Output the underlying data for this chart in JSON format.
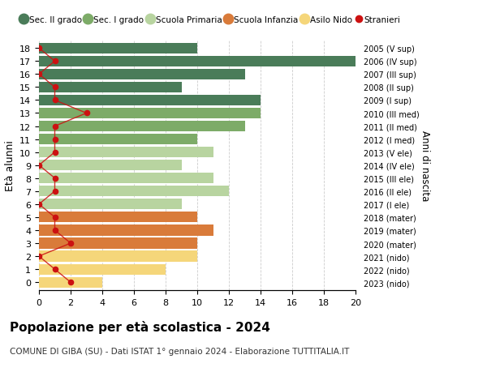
{
  "ages": [
    18,
    17,
    16,
    15,
    14,
    13,
    12,
    11,
    10,
    9,
    8,
    7,
    6,
    5,
    4,
    3,
    2,
    1,
    0
  ],
  "years": [
    "2005 (V sup)",
    "2006 (IV sup)",
    "2007 (III sup)",
    "2008 (II sup)",
    "2009 (I sup)",
    "2010 (III med)",
    "2011 (II med)",
    "2012 (I med)",
    "2013 (V ele)",
    "2014 (IV ele)",
    "2015 (III ele)",
    "2016 (II ele)",
    "2017 (I ele)",
    "2018 (mater)",
    "2019 (mater)",
    "2020 (mater)",
    "2021 (nido)",
    "2022 (nido)",
    "2023 (nido)"
  ],
  "bar_values": [
    10,
    20,
    13,
    9,
    14,
    14,
    13,
    10,
    11,
    9,
    11,
    12,
    9,
    10,
    11,
    10,
    10,
    8,
    4
  ],
  "bar_colors": [
    "#4a7c59",
    "#4a7c59",
    "#4a7c59",
    "#4a7c59",
    "#4a7c59",
    "#7dab68",
    "#7dab68",
    "#7dab68",
    "#b8d4a0",
    "#b8d4a0",
    "#b8d4a0",
    "#b8d4a0",
    "#b8d4a0",
    "#d97b3a",
    "#d97b3a",
    "#d97b3a",
    "#f5d67a",
    "#f5d67a",
    "#f5d67a"
  ],
  "stranieri_values": [
    0,
    1,
    0,
    1,
    1,
    3,
    1,
    1,
    1,
    0,
    1,
    1,
    0,
    1,
    1,
    2,
    0,
    1,
    2
  ],
  "title": "Popolazione per età scolastica - 2024",
  "subtitle": "COMUNE DI GIBA (SU) - Dati ISTAT 1° gennaio 2024 - Elaborazione TUTTITALIA.IT",
  "ylabel_left": "Età alunni",
  "ylabel_right": "Anni di nascita",
  "xlim": [
    0,
    20
  ],
  "xticks": [
    0,
    2,
    4,
    6,
    8,
    10,
    12,
    14,
    16,
    18,
    20
  ],
  "legend_labels": [
    "Sec. II grado",
    "Sec. I grado",
    "Scuola Primaria",
    "Scuola Infanzia",
    "Asilo Nido",
    "Stranieri"
  ],
  "legend_colors": [
    "#4a7c59",
    "#7dab68",
    "#b8d4a0",
    "#d97b3a",
    "#f5d67a",
    "#cc1111"
  ],
  "bg_color": "#ffffff",
  "grid_color": "#cccccc"
}
